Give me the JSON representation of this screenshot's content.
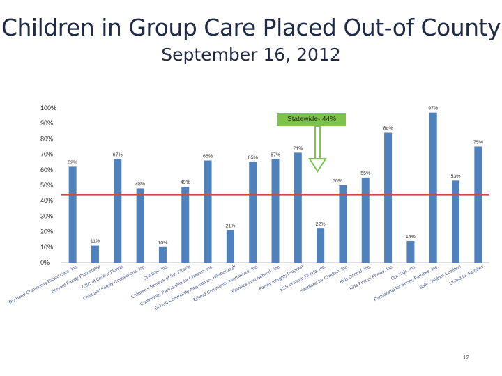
{
  "title": "Children in Group Care Placed Out-of County",
  "subtitle": "September 16, 2012",
  "page_number": "12",
  "colors": {
    "bar": "#4f81bd",
    "reference_line": "#c0504d",
    "annotation": "#7dc24b"
  },
  "chart_data": {
    "type": "bar",
    "title": "Children in Group Care Placed Out-of County",
    "subtitle": "September 16, 2012",
    "xlabel": "",
    "ylabel": "",
    "ylim": [
      0,
      100
    ],
    "y_ticks": [
      "0%",
      "10%",
      "20%",
      "30%",
      "40%",
      "50%",
      "60%",
      "70%",
      "80%",
      "90%",
      "100%"
    ],
    "grid": false,
    "categories": [
      "Big Bend Community Based Care, Inc.",
      "Brevard Family Partnership",
      "CBC of Central Florida",
      "Child and Family Connections, Inc.",
      "ChildNet, Inc.",
      "Children's Network of SW Florida",
      "Community Partnership for Children, Inc.",
      "Eckerd Community Alternatives, Hillsborough",
      "Eckerd Community Alternatives, Inc.",
      "Families First Network, Inc.",
      "Family Integrity Program",
      "FSS of North Florida, Inc.",
      "Heartland for Children, Inc.",
      "Kids Central, Inc.",
      "Kids First of Florida, Inc.",
      "Our Kids, Inc.",
      "Partnership for Strong Families, Inc.",
      "Safe Children Coalition",
      "United for Families"
    ],
    "values": [
      62,
      11,
      67,
      48,
      10,
      49,
      66,
      21,
      65,
      67,
      71,
      22,
      50,
      55,
      84,
      14,
      97,
      53,
      75
    ],
    "labels": [
      "62%",
      "11%",
      "67%",
      "48%",
      "10%",
      "49%",
      "66%",
      "21%",
      "65%",
      "67%",
      "71%",
      "22%",
      "50%",
      "55%",
      "84%",
      "14%",
      "97%",
      "53%",
      "75%"
    ],
    "reference_line": {
      "label": "Statewide- 44%",
      "value": 44
    }
  }
}
